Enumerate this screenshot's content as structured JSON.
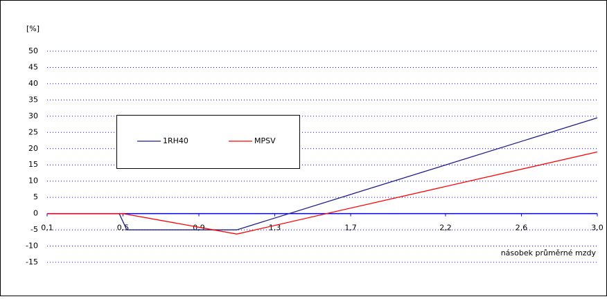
{
  "chart_data": {
    "type": "line",
    "y_label": "[%]",
    "x_label": "násobek průměrné mzdy",
    "xlim": [
      0.1,
      3.0
    ],
    "xticks": [
      {
        "value": 0.1,
        "label": "0,1"
      },
      {
        "value": 0.5,
        "label": "0,5"
      },
      {
        "value": 0.9,
        "label": "0,9"
      },
      {
        "value": 1.3,
        "label": "1,3"
      },
      {
        "value": 1.7,
        "label": "1,7"
      },
      {
        "value": 2.2,
        "label": "2,2"
      },
      {
        "value": 2.6,
        "label": "2,6"
      },
      {
        "value": 3.0,
        "label": "3,0"
      }
    ],
    "ylim": [
      -15,
      50
    ],
    "yticks": [
      50,
      45,
      40,
      35,
      30,
      25,
      20,
      15,
      10,
      5,
      0,
      -5,
      -10,
      -15
    ],
    "grid": true,
    "series": [
      {
        "name": "1RH40",
        "color": "#1c1c8c",
        "x": [
          0.1,
          0.48,
          0.52,
          1.1,
          3.0
        ],
        "values": [
          0,
          0,
          -5,
          -5,
          29.5
        ]
      },
      {
        "name": "MPSV",
        "color": "#ff0000",
        "x": [
          0.1,
          0.5,
          1.1,
          3.0
        ],
        "values": [
          0,
          0,
          -6.3,
          19
        ]
      }
    ]
  }
}
